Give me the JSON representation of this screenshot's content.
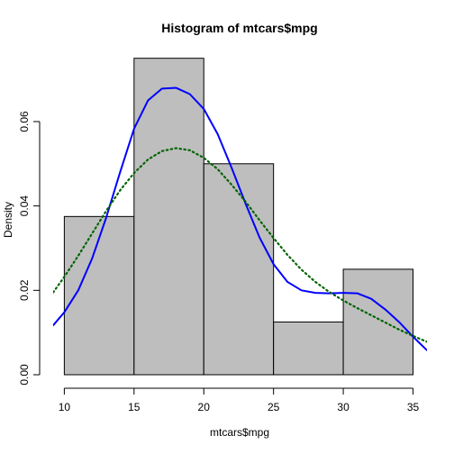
{
  "chart_data": {
    "type": "bar",
    "title": "Histogram of mtcars$mpg",
    "xlabel": "mtcars$mpg",
    "ylabel": "Density",
    "xlim": [
      9.2,
      36
    ],
    "ylim": [
      0,
      0.076
    ],
    "x_ticks": [
      10,
      15,
      20,
      25,
      30,
      35
    ],
    "y_ticks": [
      0.0,
      0.02,
      0.04,
      0.06
    ],
    "y_tick_labels": [
      "0.00",
      "0.02",
      "0.04",
      "0.06"
    ],
    "bins": [
      {
        "start": 10,
        "end": 15,
        "density": 0.0375
      },
      {
        "start": 15,
        "end": 20,
        "density": 0.075
      },
      {
        "start": 20,
        "end": 25,
        "density": 0.05
      },
      {
        "start": 25,
        "end": 30,
        "density": 0.0125
      },
      {
        "start": 30,
        "end": 35,
        "density": 0.025
      }
    ],
    "bar_fill": "#bebebe",
    "bar_stroke": "#000000",
    "series": [
      {
        "style": "solid",
        "color": "#0000ff",
        "points": [
          [
            9.2,
            0.0117
          ],
          [
            10,
            0.0148
          ],
          [
            11,
            0.02
          ],
          [
            12,
            0.0276
          ],
          [
            13,
            0.0372
          ],
          [
            14,
            0.048
          ],
          [
            15,
            0.0583
          ],
          [
            16,
            0.065
          ],
          [
            17,
            0.0678
          ],
          [
            18,
            0.068
          ],
          [
            19,
            0.0665
          ],
          [
            20,
            0.063
          ],
          [
            21,
            0.057
          ],
          [
            22,
            0.049
          ],
          [
            23,
            0.0405
          ],
          [
            24,
            0.0325
          ],
          [
            25,
            0.0262
          ],
          [
            26,
            0.022
          ],
          [
            27,
            0.02
          ],
          [
            28,
            0.0194
          ],
          [
            29,
            0.0193
          ],
          [
            30,
            0.0194
          ],
          [
            31,
            0.0193
          ],
          [
            32,
            0.018
          ],
          [
            33,
            0.0155
          ],
          [
            34,
            0.0125
          ],
          [
            35,
            0.009
          ],
          [
            36,
            0.0058
          ]
        ]
      },
      {
        "style": "dotted",
        "color": "#006400",
        "points": [
          [
            9.2,
            0.0195
          ],
          [
            10,
            0.0232
          ],
          [
            11,
            0.0282
          ],
          [
            12,
            0.0335
          ],
          [
            13,
            0.0388
          ],
          [
            14,
            0.0437
          ],
          [
            15,
            0.0478
          ],
          [
            16,
            0.051
          ],
          [
            17,
            0.053
          ],
          [
            18,
            0.0537
          ],
          [
            19,
            0.0532
          ],
          [
            20,
            0.0514
          ],
          [
            21,
            0.0487
          ],
          [
            22,
            0.045
          ],
          [
            23,
            0.041
          ],
          [
            24,
            0.0366
          ],
          [
            25,
            0.0324
          ],
          [
            26,
            0.0284
          ],
          [
            27,
            0.0249
          ],
          [
            28,
            0.022
          ],
          [
            29,
            0.0196
          ],
          [
            30,
            0.0176
          ],
          [
            31,
            0.0158
          ],
          [
            32,
            0.0141
          ],
          [
            33,
            0.0124
          ],
          [
            34,
            0.0107
          ],
          [
            35,
            0.0092
          ],
          [
            36,
            0.0078
          ]
        ]
      }
    ]
  }
}
